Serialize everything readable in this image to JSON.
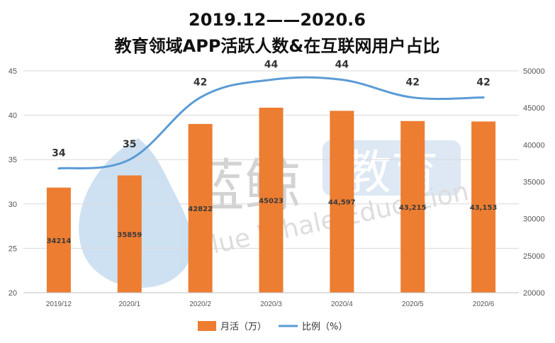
{
  "chart_data": {
    "type": "bar+line",
    "title_line1": "2019.12——2020.6",
    "title_line2": "教育领域APP活跃人数&在互联网用户占比",
    "categories": [
      "2019/12",
      "2020/1",
      "2020/2",
      "2020/3",
      "2020/4",
      "2020/5",
      "2020/6"
    ],
    "series": [
      {
        "name": "月活（万）",
        "type": "bar",
        "axis": "right",
        "color": "#ed7d31",
        "values": [
          34214,
          35859,
          42822,
          45023,
          44597,
          43215,
          43153
        ],
        "labels": [
          "34214",
          "35859",
          "42822",
          "45023",
          "44,597",
          "43,215",
          "43,153"
        ]
      },
      {
        "name": "比例（%）",
        "type": "line",
        "axis": "left",
        "color": "#5b9bd5",
        "values": [
          34,
          35,
          42,
          44,
          44,
          42,
          42
        ],
        "labels": [
          "34",
          "35",
          "42",
          "44",
          "44",
          "42",
          "42"
        ]
      }
    ],
    "y_left": {
      "ylim": [
        20,
        45
      ],
      "ticks": [
        "20",
        "25",
        "30",
        "35",
        "40",
        "45"
      ]
    },
    "y_right": {
      "ylim": [
        20000,
        50000
      ],
      "ticks": [
        "20000",
        "25000",
        "30000",
        "35000",
        "40000",
        "45000",
        "50000"
      ]
    },
    "grid": true,
    "legend_position": "bottom"
  },
  "watermark": {
    "text_cn_1": "蓝鲸",
    "text_cn_2": "教育",
    "text_en": "Blue Whale Education"
  }
}
